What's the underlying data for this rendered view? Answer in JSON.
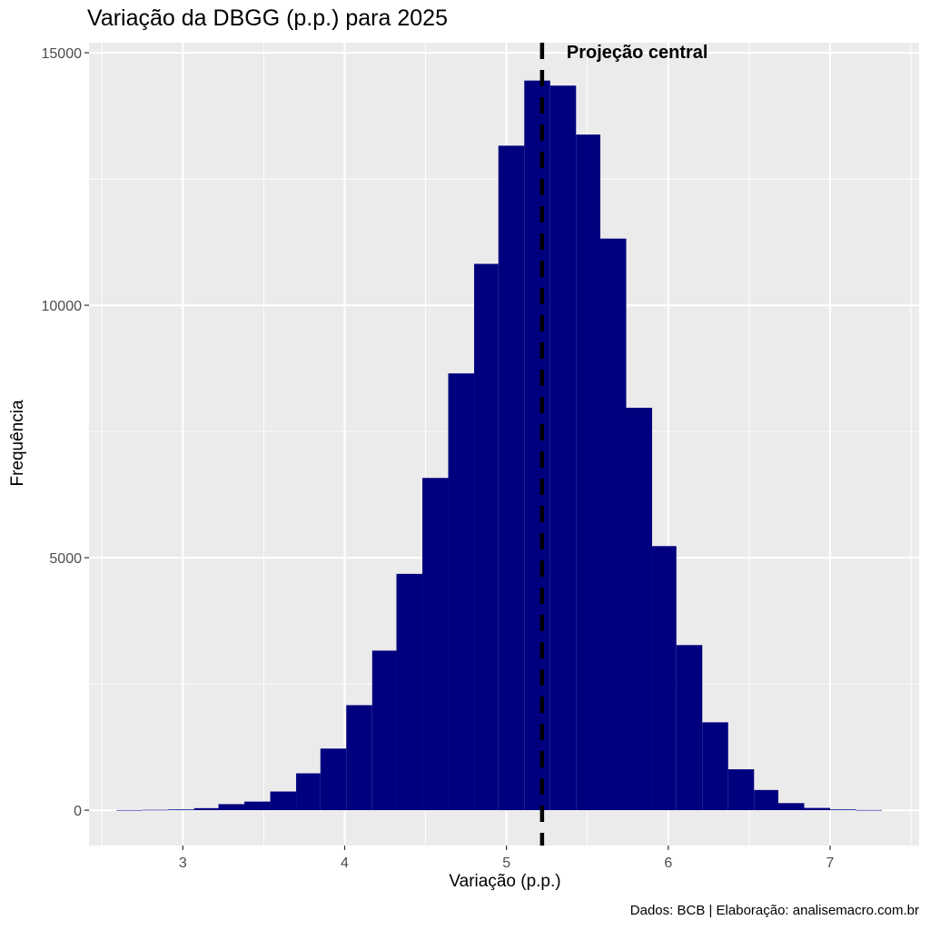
{
  "chart_data": {
    "type": "bar",
    "title": "Variação da DBGG (p.p.) para 2025",
    "xlabel": "Variação (p.p.)",
    "ylabel": "Frequência",
    "caption": "Dados: BCB | Elaboração: analisemacro.com.br",
    "xlim": [
      2.42,
      7.55
    ],
    "ylim": [
      -700,
      15200
    ],
    "x_ticks": [
      3,
      4,
      5,
      6,
      7
    ],
    "y_ticks": [
      0,
      5000,
      10000,
      15000
    ],
    "x_tick_labels": [
      "3",
      "4",
      "5",
      "6",
      "7"
    ],
    "y_tick_labels": [
      "0",
      "5000",
      "10000",
      "15000"
    ],
    "grid": true,
    "bin_width": 0.157,
    "bins": [
      {
        "x0": 2.59,
        "x1": 2.75,
        "count": 3
      },
      {
        "x0": 2.75,
        "x1": 2.91,
        "count": 8
      },
      {
        "x0": 2.91,
        "x1": 3.07,
        "count": 15
      },
      {
        "x0": 3.07,
        "x1": 3.22,
        "count": 40
      },
      {
        "x0": 3.22,
        "x1": 3.38,
        "count": 120
      },
      {
        "x0": 3.38,
        "x1": 3.54,
        "count": 170
      },
      {
        "x0": 3.54,
        "x1": 3.7,
        "count": 370
      },
      {
        "x0": 3.7,
        "x1": 3.85,
        "count": 730
      },
      {
        "x0": 3.85,
        "x1": 4.01,
        "count": 1220
      },
      {
        "x0": 4.01,
        "x1": 4.17,
        "count": 2080
      },
      {
        "x0": 4.17,
        "x1": 4.32,
        "count": 3160
      },
      {
        "x0": 4.32,
        "x1": 4.48,
        "count": 4680
      },
      {
        "x0": 4.48,
        "x1": 4.64,
        "count": 6580
      },
      {
        "x0": 4.64,
        "x1": 4.8,
        "count": 8650
      },
      {
        "x0": 4.8,
        "x1": 4.95,
        "count": 10820
      },
      {
        "x0": 4.95,
        "x1": 5.11,
        "count": 13160
      },
      {
        "x0": 5.11,
        "x1": 5.27,
        "count": 14450
      },
      {
        "x0": 5.27,
        "x1": 5.43,
        "count": 14350
      },
      {
        "x0": 5.43,
        "x1": 5.58,
        "count": 13380
      },
      {
        "x0": 5.58,
        "x1": 5.74,
        "count": 11320
      },
      {
        "x0": 5.74,
        "x1": 5.9,
        "count": 7970
      },
      {
        "x0": 5.9,
        "x1": 6.05,
        "count": 5230
      },
      {
        "x0": 6.05,
        "x1": 6.21,
        "count": 3270
      },
      {
        "x0": 6.21,
        "x1": 6.37,
        "count": 1740
      },
      {
        "x0": 6.37,
        "x1": 6.53,
        "count": 810
      },
      {
        "x0": 6.53,
        "x1": 6.68,
        "count": 400
      },
      {
        "x0": 6.68,
        "x1": 6.84,
        "count": 140
      },
      {
        "x0": 6.84,
        "x1": 7.0,
        "count": 45
      },
      {
        "x0": 7.0,
        "x1": 7.16,
        "count": 15
      },
      {
        "x0": 7.16,
        "x1": 7.32,
        "count": 4
      }
    ],
    "bar_color": "#00007F",
    "panel_background": "#EBEBEB",
    "grid_color": "#FFFFFF",
    "reference_line": {
      "x": 5.22,
      "label": "Projeção central",
      "style": "dashed",
      "color": "#000000"
    }
  }
}
